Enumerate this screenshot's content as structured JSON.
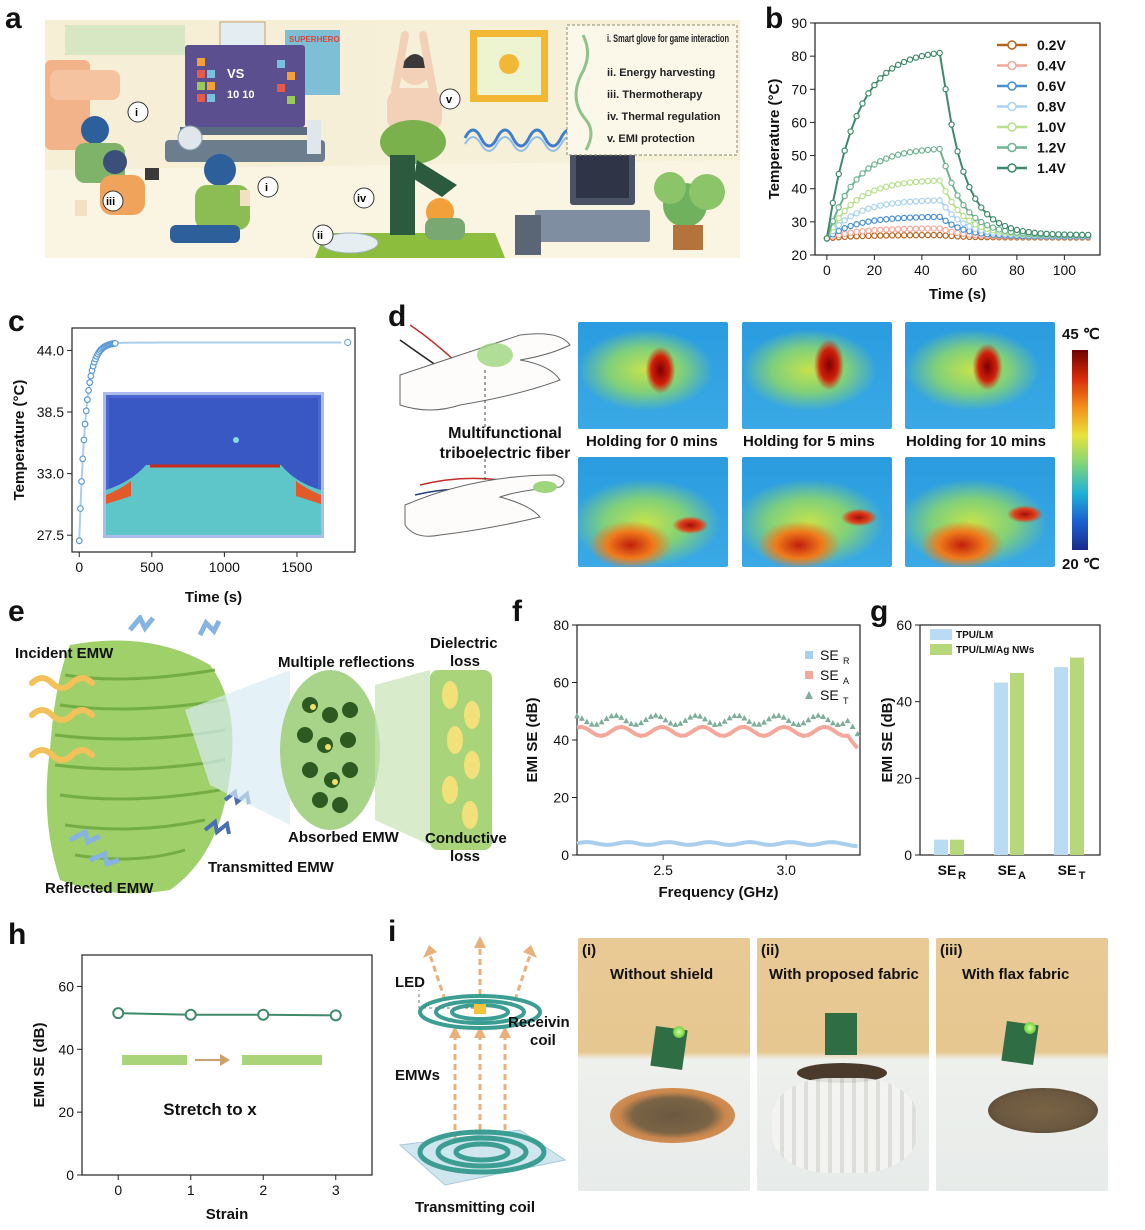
{
  "panel_labels": {
    "a": "a",
    "b": "b",
    "c": "c",
    "d": "d",
    "e": "e",
    "f": "f",
    "g": "g",
    "h": "h",
    "i": "i"
  },
  "panel_a": {
    "legend": [
      "i. Smart glove for game interaction",
      "ii. Energy harvesting",
      "iii. Thermotherapy",
      "iv. Thermal regulation",
      "v. EMI protection"
    ],
    "scene_markers": [
      "i",
      "i",
      "ii",
      "iii",
      "iv",
      "v"
    ],
    "screen_text": {
      "vs": "VS",
      "score": "10 10"
    },
    "poster_text": "SUPERHERO"
  },
  "panel_d": {
    "fiber_label_1": "Multifunctional",
    "fiber_label_2": "triboelectric fiber",
    "captions": [
      "Holding for 0 mins",
      "Holding for 5 mins",
      "Holding for 10 mins"
    ],
    "scale_max": "45 ℃",
    "scale_min": "20 ℃",
    "colors": {
      "hot": "#8b0000",
      "cold": "#1a2a8a"
    }
  },
  "panel_e": {
    "incident": "Incident EMW",
    "multiple": "Multiple reflections",
    "dielectric_1": "Dielectric",
    "dielectric_2": "loss",
    "absorbed": "Absorbed EMW",
    "conductive_1": "Conductive",
    "conductive_2": "loss",
    "transmitted": "Transmitted EMW",
    "reflected": "Reflected EMW"
  },
  "panel_i": {
    "led": "LED",
    "receiving_1": "Receiving",
    "receiving_2": "coil",
    "emws": "EMWs",
    "transmitting": "Transmitting coil",
    "photos": [
      {
        "num": "(i)",
        "title": "Without shield"
      },
      {
        "num": "(ii)",
        "title": "With proposed  fabric"
      },
      {
        "num": "(iii)",
        "title": "With  flax fabric"
      }
    ]
  },
  "chart_data": [
    {
      "id": "b",
      "type": "line",
      "xlabel": "Time (s)",
      "ylabel": "Temperature (°C)",
      "xlim": [
        -5,
        115
      ],
      "ylim": [
        20,
        90
      ],
      "xticks": [
        0,
        20,
        40,
        60,
        80,
        100
      ],
      "yticks": [
        20,
        30,
        40,
        50,
        60,
        70,
        80,
        90
      ],
      "series": [
        {
          "name": "0.2V",
          "color": "#b5651d",
          "peak": 26,
          "end": 25.3,
          "ticklen": 5
        },
        {
          "name": "0.4V",
          "color": "#f4a79a",
          "peak": 28,
          "end": 25.5
        },
        {
          "name": "0.6V",
          "color": "#4a8fcf",
          "peak": 31.5,
          "end": 25.6
        },
        {
          "name": "0.8V",
          "color": "#a9d3ee",
          "peak": 36.5,
          "end": 25.8
        },
        {
          "name": "1.0V",
          "color": "#b6e08a",
          "peak": 42.5,
          "end": 26
        },
        {
          "name": "1.2V",
          "color": "#6fb392",
          "peak": 52,
          "end": 26
        },
        {
          "name": "1.4V",
          "color": "#3f8a6b",
          "peak": 81,
          "end": 26
        }
      ]
    },
    {
      "id": "c",
      "type": "line",
      "xlabel": "Time (s)",
      "ylabel": "Temperature (°C)",
      "xlim": [
        -50,
        1900
      ],
      "ylim": [
        26,
        46
      ],
      "xticks": [
        0,
        500,
        1000,
        1500
      ],
      "yticks": [
        27.5,
        33.0,
        38.5,
        44.0
      ],
      "ytick_labels": [
        "27.5",
        "33.0",
        "38.5",
        "44.0"
      ],
      "series": [
        {
          "name": "temperature",
          "color": "#a9cfee",
          "start": 27,
          "plateau": 44.7,
          "end_time": 1850
        }
      ]
    },
    {
      "id": "f",
      "type": "line",
      "xlabel": "Frequency (GHz)",
      "ylabel": "EMI SE (dB)",
      "xlim": [
        2.15,
        3.3
      ],
      "ylim": [
        0,
        80
      ],
      "xticks": [
        2.5,
        3.0
      ],
      "xtick_labels": [
        "2.5",
        "3.0"
      ],
      "yticks": [
        0,
        20,
        40,
        60,
        80
      ],
      "series": [
        {
          "name": "SE",
          "sub": "R",
          "color": "#a9cfee",
          "mean": 4
        },
        {
          "name": "SE",
          "sub": "A",
          "color": "#f4a79a",
          "mean": 43
        },
        {
          "name": "SE",
          "sub": "T",
          "color": "#7fae9a",
          "mean": 47
        }
      ]
    },
    {
      "id": "g",
      "type": "bar",
      "ylabel": "EMI SE (dB)",
      "ylim": [
        0,
        60
      ],
      "yticks": [
        0,
        20,
        40,
        60
      ],
      "categories": [
        {
          "main": "SE",
          "sub": "R"
        },
        {
          "main": "SE",
          "sub": "A"
        },
        {
          "main": "SE",
          "sub": "T"
        }
      ],
      "series": [
        {
          "name": "TPU/LM",
          "color": "#b9dcf2",
          "values": [
            4,
            45,
            49
          ]
        },
        {
          "name": "TPU/LM/Ag NWs",
          "color": "#b6d77a",
          "values": [
            4,
            47.5,
            51.5
          ]
        }
      ]
    },
    {
      "id": "h",
      "type": "line",
      "xlabel": "Strain",
      "ylabel": "EMI SE (dB)",
      "xlim": [
        -0.5,
        3.5
      ],
      "ylim": [
        0,
        70
      ],
      "xticks": [
        0,
        1,
        2,
        3
      ],
      "yticks": [
        0,
        20,
        40,
        60
      ],
      "annotation": "Stretch to x",
      "series": [
        {
          "name": "EMI SE",
          "color": "#3f8a6b",
          "x": [
            0,
            1,
            2,
            3
          ],
          "values": [
            51.5,
            51,
            51,
            50.8
          ]
        }
      ]
    }
  ]
}
